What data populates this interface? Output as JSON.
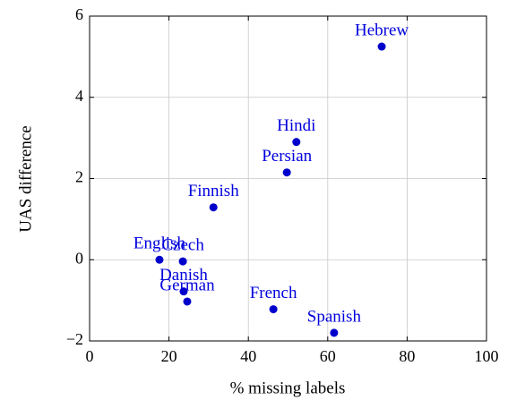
{
  "chart_data": {
    "type": "scatter",
    "xlabel": "% missing labels",
    "ylabel": "UAS difference",
    "point_labels": [
      "Hebrew",
      "Hindi",
      "Persian",
      "Finnish",
      "English",
      "Czech",
      "Danish",
      "German",
      "French",
      "Spanish"
    ],
    "x": [
      73.6,
      52.1,
      49.7,
      31.2,
      17.6,
      23.5,
      23.7,
      24.6,
      46.3,
      61.6
    ],
    "values": [
      5.25,
      2.9,
      2.15,
      1.29,
      0,
      -0.04,
      -0.78,
      -1.03,
      -1.22,
      -1.8
    ],
    "color": "#0000cc",
    "xlim": [
      0,
      100
    ],
    "xticks": [
      0,
      20,
      40,
      60,
      80,
      100
    ],
    "ylim": [
      -2,
      6
    ],
    "yticks": [
      {
        "value": -2,
        "label": "−2"
      },
      0,
      2,
      4,
      6
    ],
    "grid": true
  }
}
